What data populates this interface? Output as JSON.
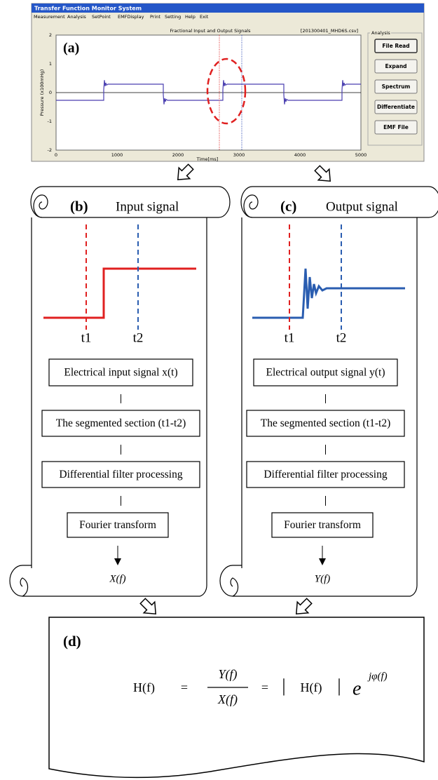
{
  "window": {
    "title": "Transfer Function Monitor System",
    "menu": [
      "Measurement",
      "Analysis",
      "SetPoint",
      "EMFDisplay",
      "Print",
      "Setting",
      "Help",
      "Exit"
    ]
  },
  "plot": {
    "label": "(a)",
    "title": "Fractional Input and Output Signals",
    "file": "[201300401_MHD6S.csv]",
    "y_axis": "Pressure (x100mHg)",
    "x_axis": "Time[ms]",
    "yticks": [
      "2",
      "1",
      "0",
      "-1",
      "-2"
    ],
    "xticks": [
      "0",
      "1000",
      "2000",
      "3000",
      "4000",
      "5000"
    ]
  },
  "analysis": {
    "title": "Analysis",
    "buttons": [
      "File Read",
      "Expand",
      "Spectrum",
      "Differentiate",
      "EMF File"
    ]
  },
  "panels": [
    {
      "label": "(b)",
      "title": "Input signal",
      "t1": "t1",
      "t2": "t2",
      "steps": [
        "Electrical input signal x(t)",
        "The segmented section (t1-t2)",
        "Differential filter processing",
        "Fourier transform"
      ],
      "output": "X(f)"
    },
    {
      "label": "(c)",
      "title": "Output signal",
      "t1": "t1",
      "t2": "t2",
      "steps": [
        "Electrical output signal y(t)",
        "The segmented section (t1-t2)",
        "Differential filter processing",
        "Fourier transform"
      ],
      "output": "Y(f)"
    }
  ],
  "result": {
    "label": "(d)",
    "formula": {
      "lhs": "H(f)",
      "eq1": "=",
      "numerator": "Y(f)",
      "denominator": "X(f)",
      "eq2": "=",
      "bar_left": "|",
      "magnitude": "H(f)",
      "bar_right": "|",
      "base": "e",
      "exponent": "jφ(f)"
    }
  }
}
